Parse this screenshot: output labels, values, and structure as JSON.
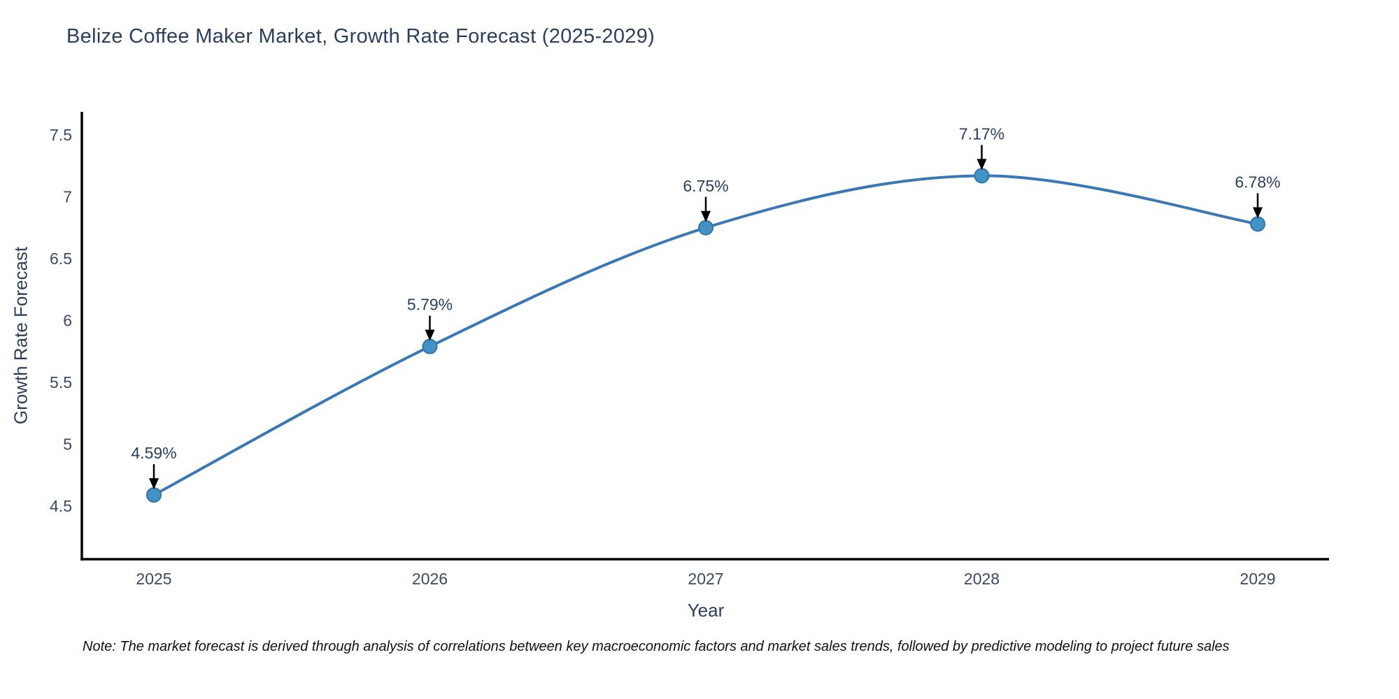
{
  "page": {
    "background": "#ffffff"
  },
  "chart_data": {
    "type": "line",
    "title": "Belize Coffee Maker Market, Growth Rate Forecast (2025-2029)",
    "xlabel": "Year",
    "ylabel": "Growth Rate Forecast",
    "categories": [
      "2025",
      "2026",
      "2027",
      "2028",
      "2029"
    ],
    "series": [
      {
        "name": "Growth Rate Forecast",
        "values": [
          4.59,
          5.79,
          6.75,
          7.17,
          6.78
        ]
      }
    ],
    "point_labels": [
      "4.59%",
      "5.79%",
      "6.75%",
      "7.17%",
      "6.78%"
    ],
    "yticks": [
      7.5,
      7,
      6.5,
      6,
      5.5,
      5,
      4.5
    ],
    "ytick_labels": [
      "7.5",
      "7",
      "6.5",
      "6",
      "5.5",
      "5",
      "4.5"
    ],
    "ylim": [
      4.07,
      7.69
    ],
    "grid": false,
    "legend": "none",
    "line_shape": "spline",
    "colors": {
      "line": "#3a78b5",
      "marker_fill": "#4292c6",
      "marker_edge": "#3273a8",
      "axis": "#000000",
      "title_text": "#2a3f5f",
      "tick_text": "#3b4a63",
      "annotation_text": "#2a3f5f",
      "arrow": "#000000",
      "note_text": "#111111"
    }
  },
  "note": {
    "text": "Note: The market forecast is derived through analysis of correlations between key macroeconomic factors and market sales trends, followed by predictive modeling to project future sales"
  }
}
